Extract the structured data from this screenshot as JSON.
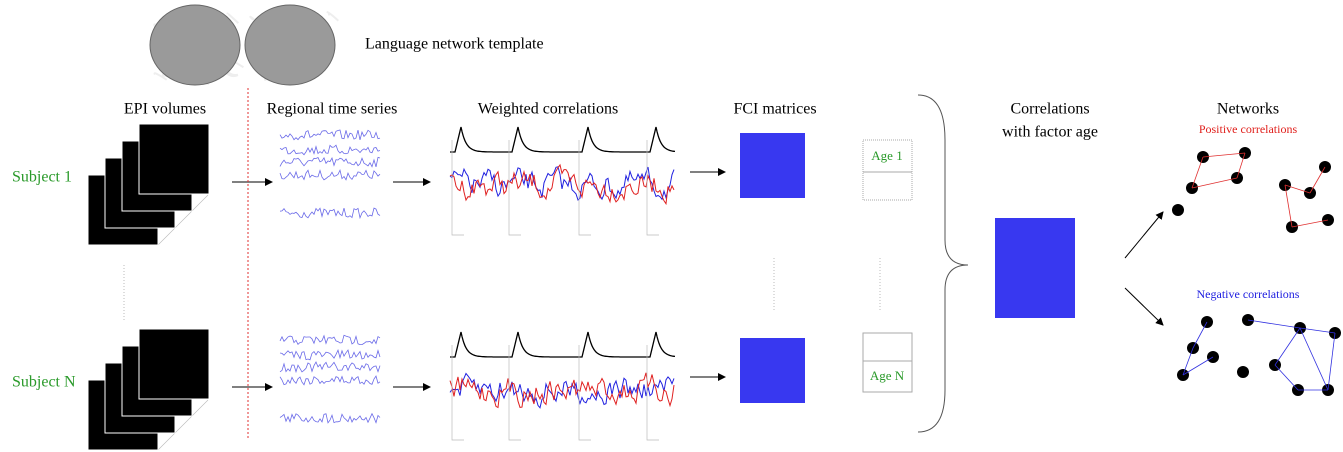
{
  "header": {
    "title": "Language network template"
  },
  "columns": [
    "EPI volumes",
    "Regional time series",
    "Weighted correlations",
    "FCI matrices",
    "Networks"
  ],
  "correlation_label": [
    "Correlations",
    "with factor age"
  ],
  "subjects": [
    {
      "label": "Subject 1",
      "age": "Age 1"
    },
    {
      "label": "Subject N",
      "age": "Age N"
    }
  ],
  "networks": {
    "positive": "Positive correlations",
    "negative": "Negative correlations"
  }
}
